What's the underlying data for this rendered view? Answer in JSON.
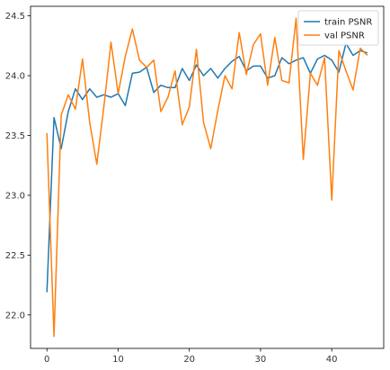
{
  "chart_data": {
    "type": "line",
    "title": "",
    "xlabel": "",
    "ylabel": "",
    "xlim": [
      -2.3,
      47.3
    ],
    "ylim": [
      21.72,
      24.58
    ],
    "x_ticks": [
      0,
      10,
      20,
      30,
      40
    ],
    "y_ticks": [
      22.0,
      22.5,
      23.0,
      23.5,
      24.0,
      24.5
    ],
    "y_tick_labels": [
      "22.0",
      "22.5",
      "23.0",
      "23.5",
      "24.0",
      "24.5"
    ],
    "grid": false,
    "legend_position": "top-right",
    "x": [
      0,
      1,
      2,
      3,
      4,
      5,
      6,
      7,
      8,
      9,
      10,
      11,
      12,
      13,
      14,
      15,
      16,
      17,
      18,
      19,
      20,
      21,
      22,
      23,
      24,
      25,
      26,
      27,
      28,
      29,
      30,
      31,
      32,
      33,
      34,
      35,
      36,
      37,
      38,
      39,
      40,
      41,
      42,
      43,
      44,
      45
    ],
    "series": [
      {
        "name": "train PSNR",
        "color": "#1f77b4",
        "values": [
          22.19,
          23.65,
          23.39,
          23.7,
          23.89,
          23.8,
          23.89,
          23.82,
          23.84,
          23.82,
          23.85,
          23.75,
          24.02,
          24.03,
          24.07,
          23.86,
          23.92,
          23.9,
          23.9,
          24.06,
          23.96,
          24.09,
          24.0,
          24.06,
          23.98,
          24.06,
          24.12,
          24.16,
          24.04,
          24.08,
          24.08,
          23.98,
          24.0,
          24.15,
          24.1,
          24.13,
          24.15,
          24.02,
          24.14,
          24.17,
          24.13,
          24.03,
          24.27,
          24.17,
          24.21,
          24.19
        ]
      },
      {
        "name": "val PSNR",
        "color": "#ff7f0e",
        "values": [
          23.52,
          21.82,
          23.67,
          23.84,
          23.72,
          24.14,
          23.61,
          23.26,
          23.74,
          24.28,
          23.85,
          24.16,
          24.39,
          24.13,
          24.07,
          24.13,
          23.7,
          23.82,
          24.04,
          23.59,
          23.74,
          24.22,
          23.61,
          23.39,
          23.71,
          24.0,
          23.89,
          24.36,
          24.01,
          24.26,
          24.35,
          23.92,
          24.32,
          23.96,
          23.94,
          24.48,
          23.3,
          24.02,
          23.92,
          24.15,
          22.96,
          24.21,
          24.04,
          23.88,
          24.23,
          24.17
        ]
      }
    ]
  }
}
